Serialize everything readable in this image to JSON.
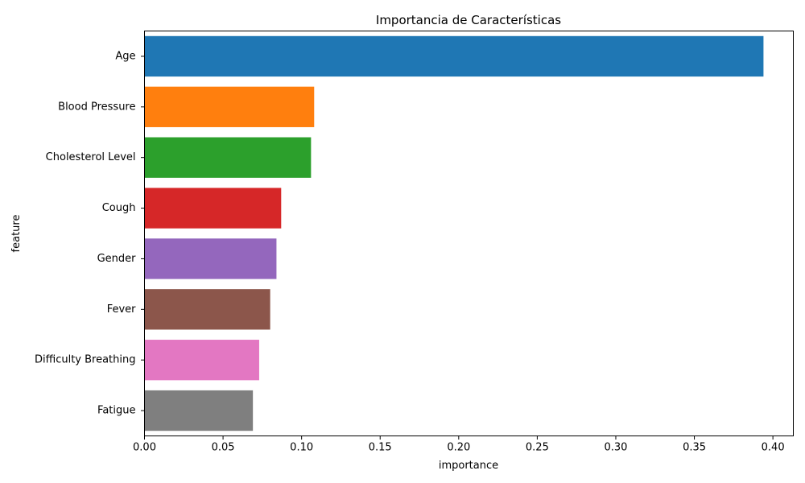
{
  "chart_data": {
    "type": "bar",
    "orientation": "horizontal",
    "title": "Importancia de Características",
    "xlabel": "importance",
    "ylabel": "feature",
    "categories": [
      "Age",
      "Blood Pressure",
      "Cholesterol Level",
      "Cough",
      "Gender",
      "Fever",
      "Difficulty Breathing",
      "Fatigue"
    ],
    "values": [
      0.394,
      0.108,
      0.106,
      0.087,
      0.084,
      0.08,
      0.073,
      0.069
    ],
    "colors": [
      "#1f77b4",
      "#ff7f0e",
      "#2ca02c",
      "#d62728",
      "#9467bd",
      "#8c564b",
      "#e377c2",
      "#7f7f7f"
    ],
    "xlim": [
      0,
      0.413
    ],
    "xticks": [
      0.0,
      0.05,
      0.1,
      0.15,
      0.2,
      0.25,
      0.3,
      0.35,
      0.4
    ],
    "xtick_labels": [
      "0.00",
      "0.05",
      "0.10",
      "0.15",
      "0.20",
      "0.25",
      "0.30",
      "0.35",
      "0.40"
    ],
    "grid": false,
    "legend": "none"
  }
}
